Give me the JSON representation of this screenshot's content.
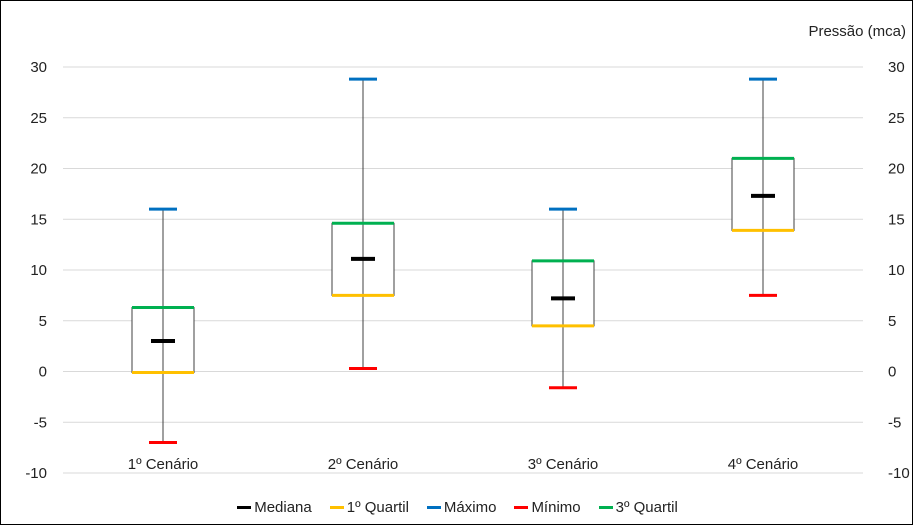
{
  "chart_data": {
    "type": "boxplot",
    "unit_label": "Pressão (mca)",
    "categories": [
      "1º Cenário",
      "2º Cenário",
      "3º Cenário",
      "4º Cenário"
    ],
    "series": [
      {
        "name": "Mediana",
        "color": "#000000",
        "values": [
          3.0,
          11.1,
          7.2,
          17.3
        ]
      },
      {
        "name": "1º Quartil",
        "color": "#FFC000",
        "values": [
          -0.1,
          7.5,
          4.5,
          13.9
        ]
      },
      {
        "name": "Máximo",
        "color": "#0070C0",
        "values": [
          16.0,
          28.8,
          16.0,
          28.8
        ]
      },
      {
        "name": "Mínimo",
        "color": "#FF0000",
        "values": [
          -7.0,
          0.3,
          -1.6,
          7.5
        ]
      },
      {
        "name": "3º Quartil",
        "color": "#00B050",
        "values": [
          6.3,
          14.6,
          10.9,
          21.0
        ]
      }
    ],
    "ylim": [
      -10,
      30
    ],
    "yticks": [
      "-10",
      "-5",
      "0",
      "5",
      "10",
      "15",
      "20",
      "25",
      "30"
    ],
    "grid": true,
    "legend_position": "bottom"
  }
}
